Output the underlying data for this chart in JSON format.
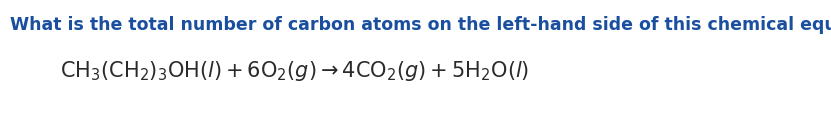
{
  "question": "What is the total number of carbon atoms on the left-hand side of this chemical equation?",
  "question_color": "#1a4fa0",
  "question_fontsize": 12.5,
  "equation_color": "#2a2a2a",
  "equation_fontsize": 15,
  "background_color": "#ffffff",
  "fig_width": 8.31,
  "fig_height": 1.21,
  "dpi": 100
}
